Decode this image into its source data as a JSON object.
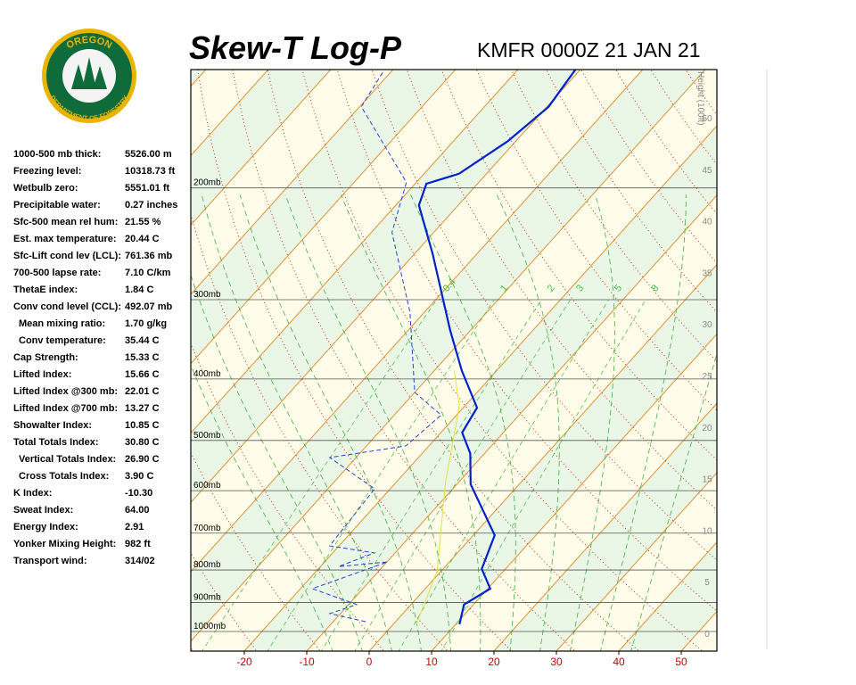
{
  "logo": {
    "top": "OREGON",
    "bottom": "DEPARTMENT OF FORESTRY"
  },
  "header": {
    "title": "Skew-T Log-P",
    "station": "KMFR 0000Z 21 JAN 21"
  },
  "indices": [
    {
      "label": "1000-500 mb thick:",
      "value": "5526.00 m"
    },
    {
      "label": "Freezing level:",
      "value": "10318.73 ft"
    },
    {
      "label": "Wetbulb zero:",
      "value": "5551.01 ft"
    },
    {
      "label": "Precipitable water:",
      "value": "0.27 inches"
    },
    {
      "label": "Sfc-500 mean rel hum:",
      "value": "21.55 %"
    },
    {
      "label": "Est. max temperature:",
      "value": "20.44 C"
    },
    {
      "label": "Sfc-Lift cond lev (LCL):",
      "value": "761.36 mb"
    },
    {
      "label": "700-500 lapse rate:",
      "value": "7.10 C/km"
    },
    {
      "label": "ThetaE index:",
      "value": "1.84 C"
    },
    {
      "label": "Conv cond level (CCL):",
      "value": "492.07 mb"
    },
    {
      "label": "Mean mixing ratio:",
      "value": "1.70 g/kg"
    },
    {
      "label": "Conv temperature:",
      "value": "35.44 C"
    },
    {
      "label": "Cap Strength:",
      "value": "15.33 C"
    },
    {
      "label": "Lifted Index:",
      "value": "15.66 C"
    },
    {
      "label": "Lifted Index @300 mb:",
      "value": "22.01 C"
    },
    {
      "label": "Lifted Index @700 mb:",
      "value": "13.27 C"
    },
    {
      "label": "Showalter Index:",
      "value": "10.85 C"
    },
    {
      "label": "Total Totals Index:",
      "value": "30.80 C"
    },
    {
      "label": "Vertical Totals Index:",
      "value": "26.90 C"
    },
    {
      "label": "Cross Totals Index:",
      "value": "3.90 C"
    },
    {
      "label": "K Index:",
      "value": "-10.30"
    },
    {
      "label": "Sweat Index:",
      "value": "64.00"
    },
    {
      "label": "Energy Index:",
      "value": "2.91"
    },
    {
      "label": "Yonker Mixing Height:",
      "value": "982 ft"
    },
    {
      "label": "Transport wind:",
      "value": "314/02"
    }
  ],
  "chart_data": {
    "type": "skew-t",
    "xticks": [
      -20,
      -10,
      0,
      10,
      20,
      30,
      40,
      50
    ],
    "pressure_levels": [
      {
        "value": 200,
        "label": "200mb"
      },
      {
        "value": 300,
        "label": "300mb"
      },
      {
        "value": 400,
        "label": "400mb"
      },
      {
        "value": 500,
        "label": "500mb"
      },
      {
        "value": 600,
        "label": "600mb"
      },
      {
        "value": 700,
        "label": "700mb"
      },
      {
        "value": 800,
        "label": "800mb"
      },
      {
        "value": 900,
        "label": "900mb"
      },
      {
        "value": 1000,
        "label": "1000mb"
      }
    ],
    "height_label": "Height (100ft)",
    "height_ticks": [
      0,
      5,
      10,
      15,
      20,
      25,
      30,
      35,
      40,
      45,
      50
    ],
    "mixing_ratio_labels": [
      0.4,
      1,
      2,
      3,
      5,
      8
    ],
    "series": [
      {
        "color": "#0022cc",
        "pressure": [
          974,
          907,
          856,
          797,
          705,
          586,
          524,
          486,
          444,
          388,
          335,
          254,
          213,
          197,
          190,
          169,
          149,
          130
        ],
        "values": [
          10.6,
          8.5,
          10.4,
          6.2,
          3.4,
          -7.8,
          -12.3,
          -16.6,
          -17.8,
          -25.6,
          -33.3,
          -47.1,
          -56.3,
          -58.2,
          -54.4,
          -51.3,
          -49.7,
          -50.8
        ]
      },
      {
        "color": "#2244cc",
        "pressure": [
          965,
          937,
          907,
          856,
          777,
          790,
          752,
          733,
          596,
          532,
          510,
          456,
          420,
          314,
          235,
          196,
          149,
          131
        ],
        "values": [
          -4.8,
          -11.7,
          -8.7,
          -18.1,
          -9.9,
          -17.1,
          -13.3,
          -21.5,
          -22.5,
          -34.2,
          -23.7,
          -22.5,
          -30,
          -42.3,
          -56.7,
          -61.6,
          -79.7,
          -81.3
        ]
      },
      {
        "color": "#e8e040",
        "pressure": [
          974,
          802,
          582,
          441,
          388
        ],
        "values": [
          3.7,
          -0.7,
          -12.1,
          -20.9,
          -26.8
        ]
      }
    ]
  }
}
